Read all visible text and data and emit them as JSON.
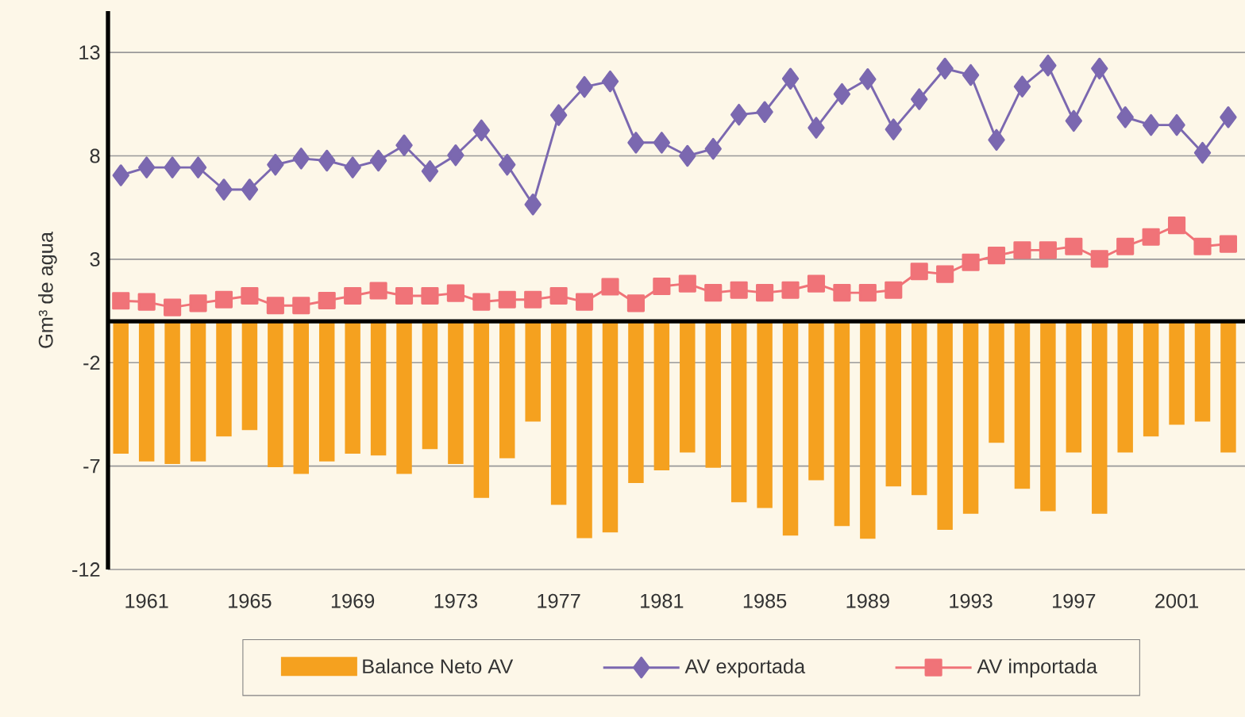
{
  "chart_data": {
    "type": "bar",
    "ylabel": "Gm³ de agua",
    "categories": [
      null,
      "1961",
      null,
      null,
      null,
      "1965",
      null,
      null,
      null,
      "1969",
      null,
      null,
      null,
      "1973",
      null,
      null,
      null,
      "1977",
      null,
      null,
      null,
      "1981",
      null,
      null,
      null,
      "1985",
      null,
      null,
      null,
      "1989",
      null,
      null,
      null,
      "1993",
      null,
      null,
      null,
      "1997",
      null,
      null,
      null,
      "2001",
      null,
      null
    ],
    "series": [
      {
        "name": "Balance Neto AV",
        "color": "#f5a11f",
        "values": [
          -6.4,
          -6.78,
          -6.9,
          -6.78,
          -5.57,
          -5.26,
          -7.05,
          -7.38,
          -6.78,
          -6.4,
          -6.49,
          -7.38,
          -6.18,
          -6.9,
          -8.54,
          -6.62,
          -4.85,
          -8.88,
          -10.49,
          -10.21,
          -7.82,
          -7.21,
          -6.34,
          -7.08,
          -8.75,
          -9.03,
          -10.36,
          -7.69,
          -9.9,
          -10.51,
          -7.98,
          -8.41,
          -10.08,
          -9.31,
          -5.87,
          -8.1,
          -9.18,
          -6.34,
          -9.31,
          -6.34,
          -5.57,
          -5.0,
          -4.85,
          -6.34
        ]
      },
      {
        "name": "AV exportada",
        "type": "line",
        "marker": "diamond",
        "color": "#7b68b0",
        "values": [
          7.06,
          7.44,
          7.44,
          7.44,
          6.37,
          6.37,
          7.57,
          7.87,
          7.77,
          7.44,
          7.77,
          8.51,
          7.26,
          8.03,
          9.23,
          7.57,
          5.65,
          9.97,
          11.33,
          11.6,
          8.64,
          8.64,
          8.0,
          8.34,
          9.99,
          10.12,
          11.73,
          9.36,
          10.99,
          11.71,
          9.28,
          10.74,
          12.22,
          11.91,
          8.77,
          11.35,
          12.37,
          9.69,
          12.22,
          9.87,
          9.49,
          9.49,
          8.15,
          9.87
        ]
      },
      {
        "name": "AV importada",
        "type": "line",
        "marker": "square",
        "color": "#f07378",
        "values": [
          0.99,
          0.94,
          0.67,
          0.87,
          1.05,
          1.23,
          0.76,
          0.76,
          1.0,
          1.23,
          1.48,
          1.23,
          1.23,
          1.36,
          0.94,
          1.05,
          1.05,
          1.23,
          0.94,
          1.67,
          0.87,
          1.69,
          1.82,
          1.38,
          1.51,
          1.38,
          1.51,
          1.82,
          1.38,
          1.38,
          1.51,
          2.41,
          2.28,
          2.85,
          3.18,
          3.44,
          3.44,
          3.62,
          3.02,
          3.62,
          4.08,
          4.64,
          3.62,
          3.74
        ]
      }
    ],
    "ylim": [
      -12,
      15
    ],
    "yticks": [
      13,
      8,
      3,
      -2,
      -7,
      -12
    ],
    "grid": "y",
    "legend": "bottom"
  }
}
